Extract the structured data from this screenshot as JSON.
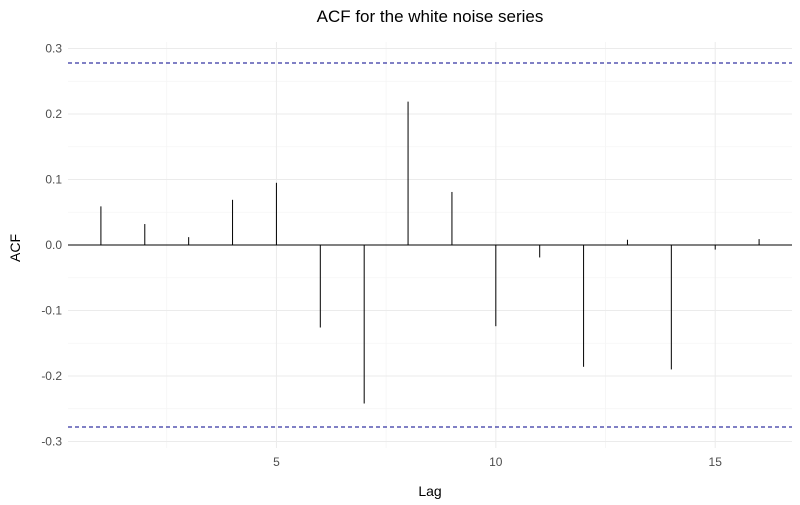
{
  "chart_data": {
    "type": "bar",
    "title": "ACF for the white noise series",
    "xlabel": "Lag",
    "ylabel": "ACF",
    "x": [
      1,
      2,
      3,
      4,
      5,
      6,
      7,
      8,
      9,
      10,
      11,
      12,
      13,
      14,
      15,
      16
    ],
    "values": [
      0.059,
      0.032,
      0.012,
      0.069,
      0.095,
      -0.126,
      -0.242,
      0.219,
      0.081,
      -0.124,
      -0.019,
      -0.186,
      0.008,
      -0.19,
      -0.007,
      0.009
    ],
    "xlim": [
      0.25,
      16.75
    ],
    "ylim": [
      -0.31,
      0.31
    ],
    "x_ticks": [
      5,
      10,
      15
    ],
    "x_tick_labels": [
      "5",
      "10",
      "15"
    ],
    "y_ticks": [
      -0.3,
      -0.2,
      -0.1,
      0.0,
      0.1,
      0.2,
      0.3
    ],
    "y_tick_labels": [
      "-0.3",
      "-0.2",
      "-0.1",
      "0.0",
      "0.1",
      "0.2",
      "0.3"
    ],
    "confidence_bounds": [
      0.278,
      -0.278
    ],
    "grid": true,
    "colors": {
      "bars": "#000000",
      "confidence": "#00008b",
      "grid_major": "#ebebeb",
      "grid_minor": "#f5f5f5",
      "zero_line": "#000000"
    }
  }
}
